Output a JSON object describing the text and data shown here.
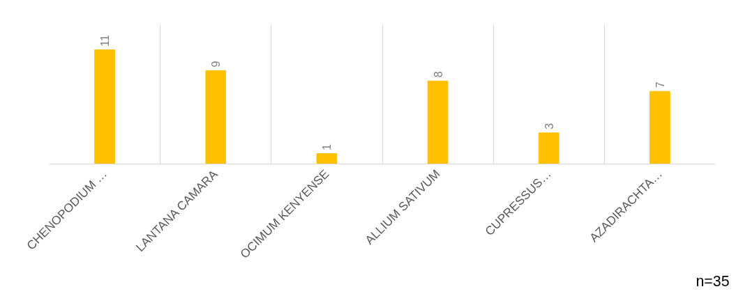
{
  "chart_data": {
    "type": "bar",
    "categories": [
      "CHENOPODIUM …",
      "LANTANA CAMARA",
      "OCIMUM KENYENSE",
      "ALLIUM SATIVUM",
      "CUPRESSUS…",
      "AZADIRACHTA…"
    ],
    "values": [
      11,
      9,
      1,
      8,
      3,
      7
    ],
    "color": "#ffc000",
    "data_labels": true,
    "grid": "x",
    "annotations": [
      "n=35"
    ]
  }
}
